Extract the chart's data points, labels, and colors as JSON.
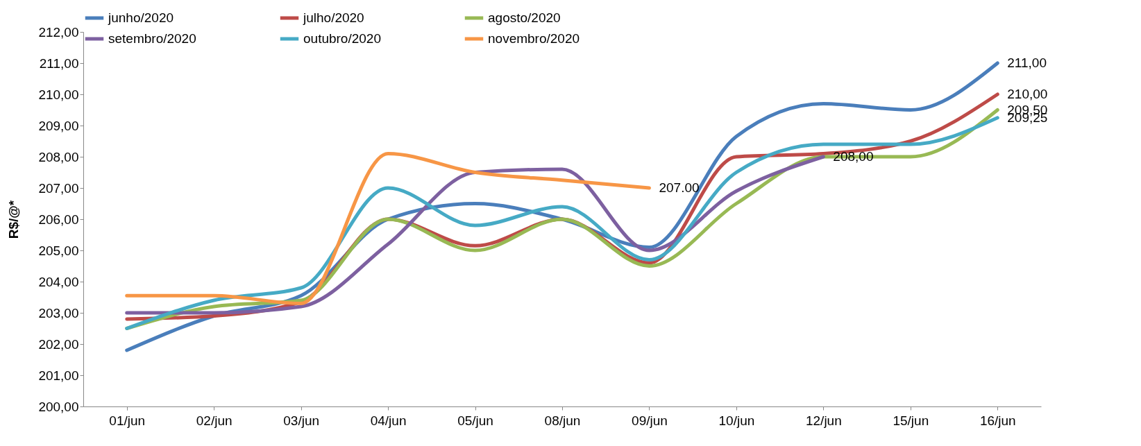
{
  "chart_data": {
    "type": "line",
    "ylabel": "R$/@*",
    "categories": [
      "01/jun",
      "02/jun",
      "03/jun",
      "04/jun",
      "05/jun",
      "08/jun",
      "09/jun",
      "10/jun",
      "12/jun",
      "15/jun",
      "16/jun"
    ],
    "ylim": [
      200,
      212
    ],
    "yticks": [
      {
        "value": 200,
        "label": "200,00"
      },
      {
        "value": 201,
        "label": "201,00"
      },
      {
        "value": 202,
        "label": "202,00"
      },
      {
        "value": 203,
        "label": "203,00"
      },
      {
        "value": 204,
        "label": "204,00"
      },
      {
        "value": 205,
        "label": "205,00"
      },
      {
        "value": 206,
        "label": "206,00"
      },
      {
        "value": 207,
        "label": "207,00"
      },
      {
        "value": 208,
        "label": "208,00"
      },
      {
        "value": 209,
        "label": "209,00"
      },
      {
        "value": 210,
        "label": "210,00"
      },
      {
        "value": 211,
        "label": "211,00"
      },
      {
        "value": 212,
        "label": "212,00"
      }
    ],
    "grid": false,
    "legend": "top",
    "marker": "none",
    "line_style": "solid",
    "series": [
      {
        "name": "junho/2020",
        "color": "#4a7ebb",
        "values": [
          201.8,
          202.9,
          203.55,
          206,
          206.5,
          206,
          205.1,
          208.65,
          209.7,
          209.5,
          211
        ],
        "value_labels": [
          null,
          null,
          null,
          null,
          null,
          null,
          null,
          null,
          null,
          null,
          "211,00"
        ]
      },
      {
        "name": "julho/2020",
        "color": "#be4b48",
        "values": [
          202.8,
          202.9,
          203.35,
          206,
          205.15,
          206,
          204.6,
          208,
          208.1,
          208.5,
          210
        ],
        "value_labels": [
          null,
          null,
          null,
          null,
          null,
          null,
          null,
          null,
          null,
          null,
          "210,00"
        ]
      },
      {
        "name": "agosto/2020",
        "color": "#98b954",
        "values": [
          202.5,
          203.2,
          203.4,
          206,
          205,
          206,
          204.5,
          206.5,
          208,
          208,
          209.5
        ],
        "value_labels": [
          null,
          null,
          null,
          null,
          null,
          null,
          null,
          null,
          null,
          null,
          "209,50"
        ]
      },
      {
        "name": "setembro/2020",
        "color": "#7d60a0",
        "values": [
          203,
          203,
          203.2,
          205.2,
          207.5,
          207.6,
          205,
          206.9,
          208,
          null,
          null
        ],
        "value_labels": [
          null,
          null,
          null,
          null,
          null,
          null,
          null,
          null,
          "208,00",
          null,
          null
        ]
      },
      {
        "name": "outubro/2020",
        "color": "#46aac5",
        "values": [
          202.5,
          203.4,
          203.8,
          207,
          205.8,
          206.4,
          204.7,
          207.5,
          208.4,
          208.4,
          209.25
        ],
        "value_labels": [
          null,
          null,
          null,
          null,
          null,
          null,
          null,
          null,
          null,
          null,
          "209,25"
        ]
      },
      {
        "name": "novembro/2020",
        "color": "#f79646",
        "values": [
          203.55,
          203.55,
          203.3,
          208.1,
          207.5,
          207.25,
          207,
          null,
          null,
          null,
          null
        ],
        "value_labels": [
          null,
          null,
          null,
          null,
          null,
          null,
          "207.00",
          null,
          null,
          null,
          null
        ]
      }
    ]
  }
}
